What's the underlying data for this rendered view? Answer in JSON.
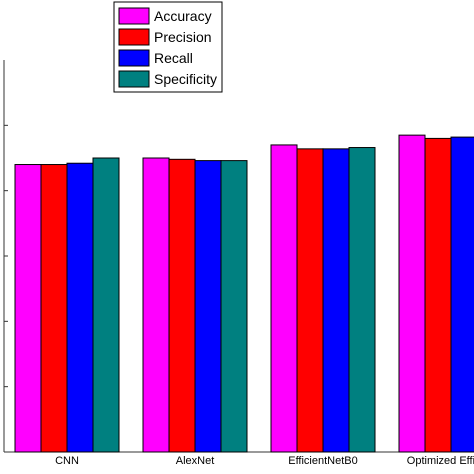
{
  "chart_data": {
    "type": "bar",
    "categories": [
      "CNN",
      "AlexNet",
      "EfficientNetB0",
      "Optimized Efficien"
    ],
    "series": [
      {
        "name": "Accuracy",
        "color": "#ff00ff",
        "values": [
          0.44,
          0.45,
          0.47,
          0.485
        ]
      },
      {
        "name": "Precision",
        "color": "#ff0000",
        "values": [
          0.44,
          0.448,
          0.464,
          0.48
        ]
      },
      {
        "name": "Recall",
        "color": "#0000ff",
        "values": [
          0.442,
          0.446,
          0.464,
          0.482
        ]
      },
      {
        "name": "Specificity",
        "color": "#008080",
        "values": [
          0.45,
          0.446,
          0.466,
          0.484
        ]
      }
    ],
    "ylim": [
      0,
      0.6
    ],
    "legend_position": "top-center",
    "grid": false
  }
}
